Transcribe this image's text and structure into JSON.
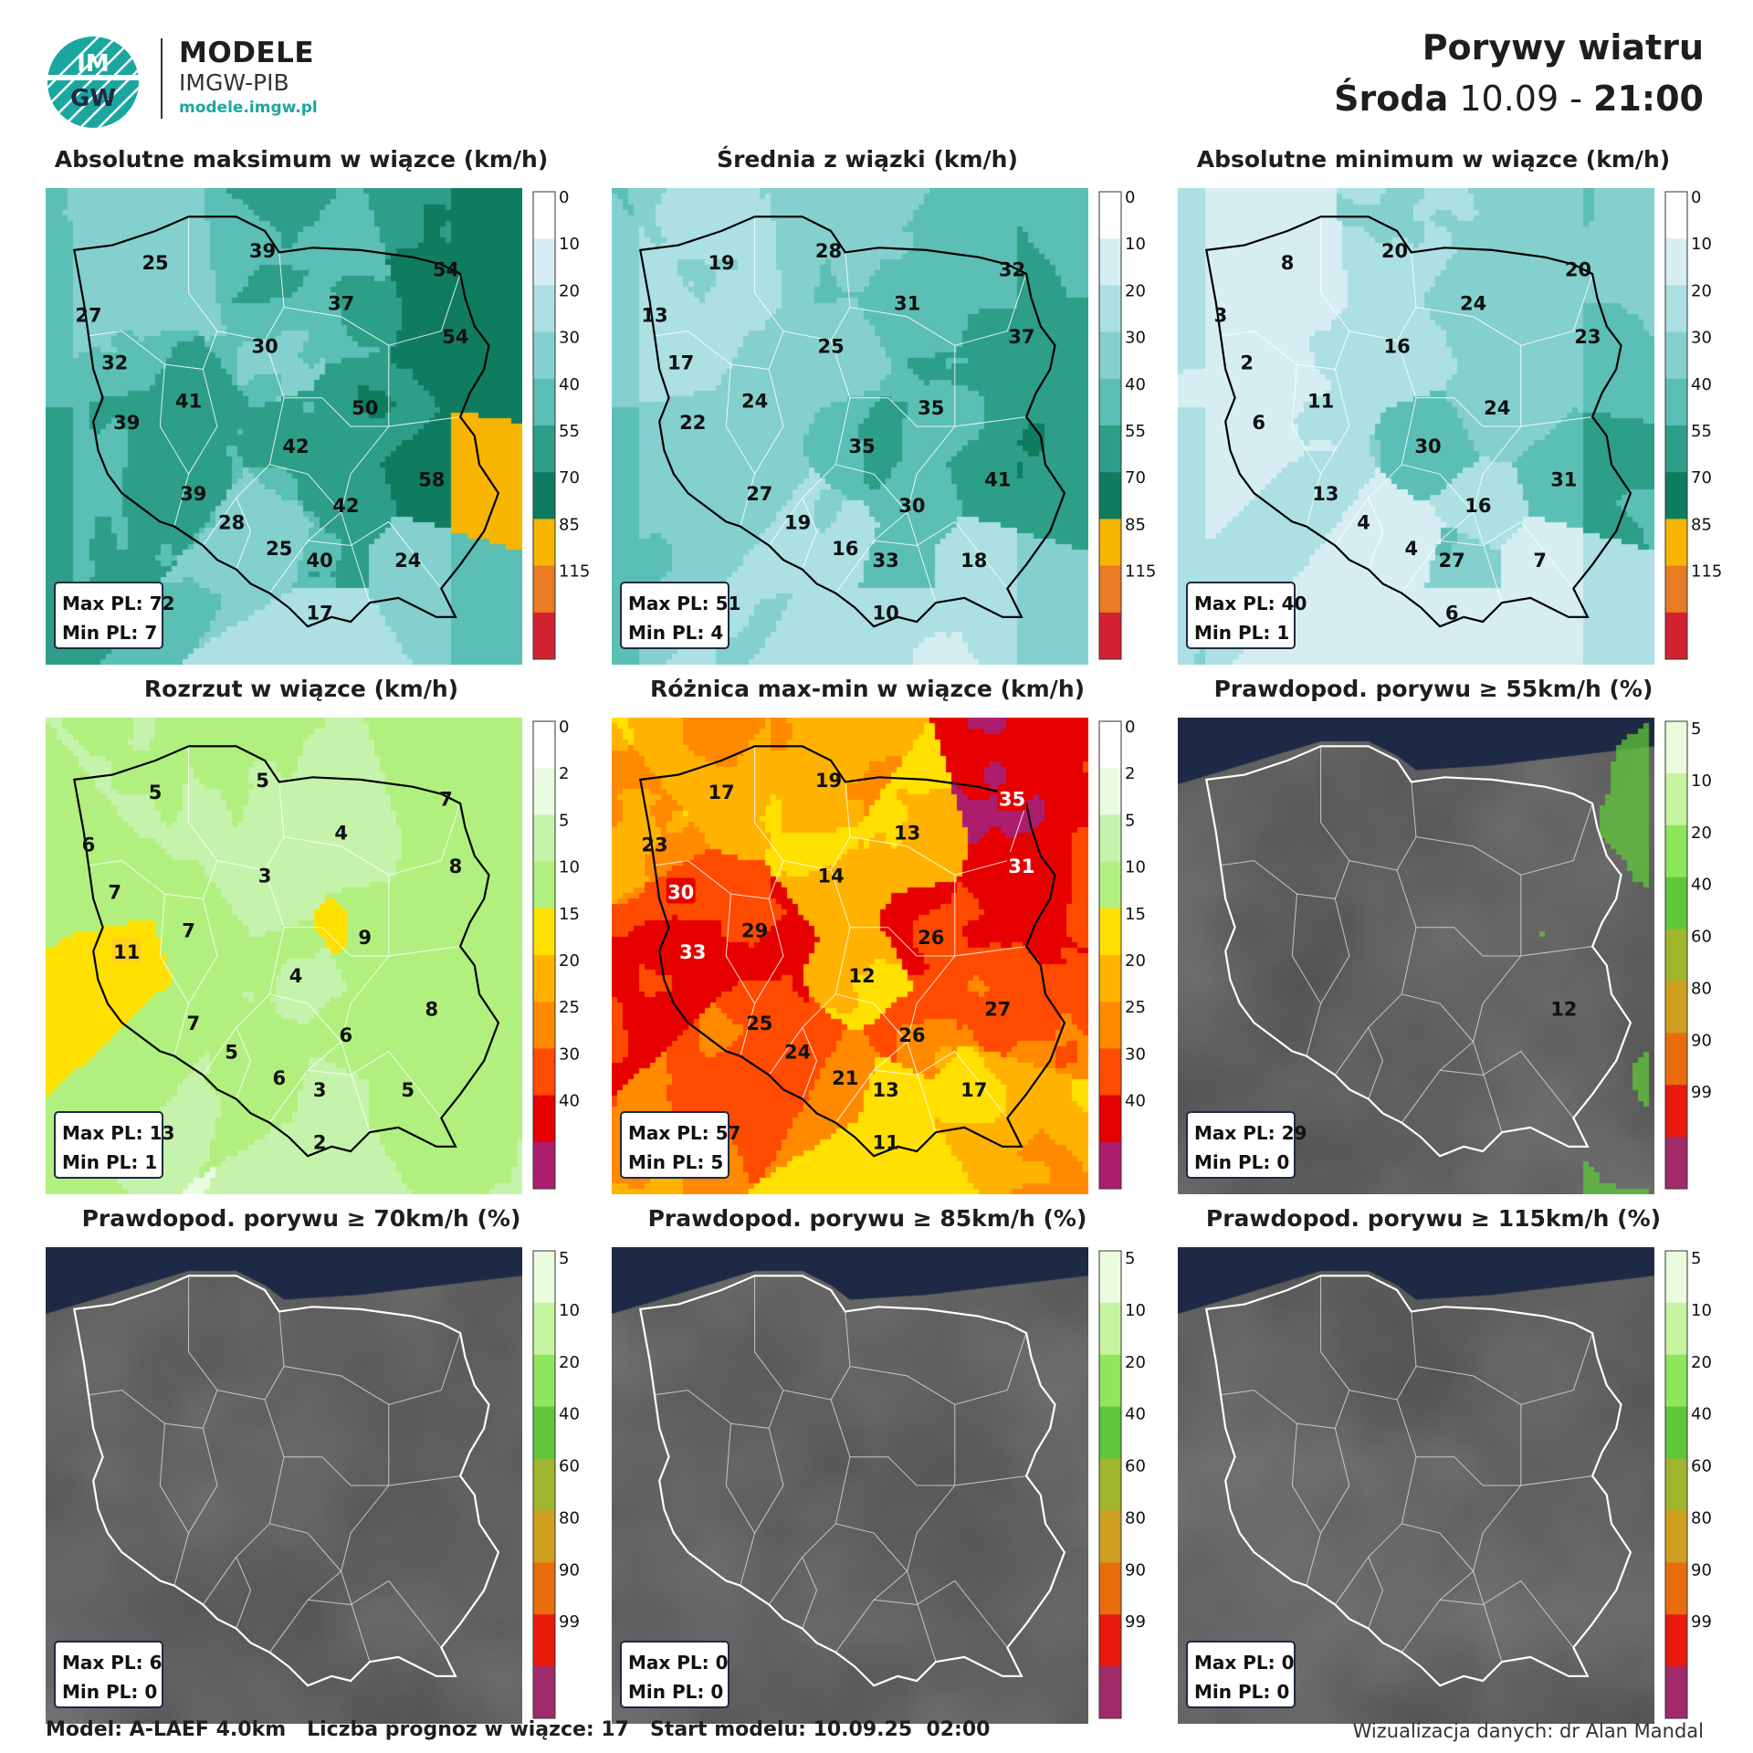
{
  "header": {
    "brand_main": "MODELE",
    "brand_sub": "IMGW-PIB",
    "brand_url": "modele.imgw.pl",
    "logo_text_top": "IM",
    "logo_text_bottom": "GW",
    "title": "Porywy wiatru",
    "day": "Środa",
    "date": "10.09",
    "sep": "-",
    "time": "21:00"
  },
  "scales": {
    "wind": {
      "ticks": [
        "0",
        "10",
        "20",
        "30",
        "40",
        "55",
        "70",
        "85",
        "115"
      ],
      "colors": [
        "#ffffff",
        "#d6eef2",
        "#ace0e3",
        "#84d0cf",
        "#5bbfb5",
        "#2d9e88",
        "#0f7c60",
        "#f7b500",
        "#e87b24",
        "#d22131"
      ]
    },
    "spread": {
      "ticks": [
        "0",
        "2",
        "5",
        "10",
        "15",
        "20",
        "25",
        "30",
        "40"
      ],
      "colors": [
        "#ffffff",
        "#eafbe2",
        "#c5f3ab",
        "#b1f07e",
        "#ffe000",
        "#ffb300",
        "#ff8a00",
        "#ff4b00",
        "#e60000",
        "#ad1d6e"
      ]
    },
    "prob": {
      "ticks": [
        "5",
        "10",
        "20",
        "40",
        "60",
        "80",
        "90",
        "99"
      ],
      "colors": [
        "#ebfcde",
        "#c6f3a0",
        "#8ee65c",
        "#5fc739",
        "#a1b52e",
        "#cf9f1f",
        "#e86c0c",
        "#e81a0e",
        "#a12b6a"
      ]
    }
  },
  "panels": [
    {
      "title": "Absolutne maksimum w wiązce (km/h)",
      "type": "wind",
      "max_label": "Max PL: 72",
      "min_label": "Min PL: 7",
      "values": [
        {
          "text": "25",
          "x": 0.23,
          "y": 0.155
        },
        {
          "text": "39",
          "x": 0.455,
          "y": 0.13
        },
        {
          "text": "54",
          "x": 0.84,
          "y": 0.17
        },
        {
          "text": "27",
          "x": 0.09,
          "y": 0.265
        },
        {
          "text": "37",
          "x": 0.62,
          "y": 0.24
        },
        {
          "text": "54",
          "x": 0.86,
          "y": 0.31
        },
        {
          "text": "32",
          "x": 0.145,
          "y": 0.365
        },
        {
          "text": "30",
          "x": 0.46,
          "y": 0.33
        },
        {
          "text": "41",
          "x": 0.3,
          "y": 0.445
        },
        {
          "text": "50",
          "x": 0.67,
          "y": 0.46
        },
        {
          "text": "39",
          "x": 0.17,
          "y": 0.49
        },
        {
          "text": "42",
          "x": 0.525,
          "y": 0.54
        },
        {
          "text": "58",
          "x": 0.81,
          "y": 0.61
        },
        {
          "text": "39",
          "x": 0.31,
          "y": 0.64
        },
        {
          "text": "42",
          "x": 0.63,
          "y": 0.665
        },
        {
          "text": "28",
          "x": 0.39,
          "y": 0.7
        },
        {
          "text": "25",
          "x": 0.49,
          "y": 0.755
        },
        {
          "text": "40",
          "x": 0.575,
          "y": 0.78
        },
        {
          "text": "24",
          "x": 0.76,
          "y": 0.78
        },
        {
          "text": "17",
          "x": 0.575,
          "y": 0.89
        }
      ]
    },
    {
      "title": "Średnia z wiązki (km/h)",
      "type": "wind",
      "max_label": "Max PL: 51",
      "min_label": "Min PL: 4",
      "values": [
        {
          "text": "19",
          "x": 0.23,
          "y": 0.155
        },
        {
          "text": "28",
          "x": 0.455,
          "y": 0.13
        },
        {
          "text": "32",
          "x": 0.84,
          "y": 0.17
        },
        {
          "text": "13",
          "x": 0.09,
          "y": 0.265
        },
        {
          "text": "31",
          "x": 0.62,
          "y": 0.24
        },
        {
          "text": "37",
          "x": 0.86,
          "y": 0.31
        },
        {
          "text": "17",
          "x": 0.145,
          "y": 0.365
        },
        {
          "text": "25",
          "x": 0.46,
          "y": 0.33
        },
        {
          "text": "24",
          "x": 0.3,
          "y": 0.445
        },
        {
          "text": "35",
          "x": 0.67,
          "y": 0.46
        },
        {
          "text": "22",
          "x": 0.17,
          "y": 0.49
        },
        {
          "text": "35",
          "x": 0.525,
          "y": 0.54
        },
        {
          "text": "41",
          "x": 0.81,
          "y": 0.61
        },
        {
          "text": "27",
          "x": 0.31,
          "y": 0.64
        },
        {
          "text": "30",
          "x": 0.63,
          "y": 0.665
        },
        {
          "text": "19",
          "x": 0.39,
          "y": 0.7
        },
        {
          "text": "16",
          "x": 0.49,
          "y": 0.755
        },
        {
          "text": "33",
          "x": 0.575,
          "y": 0.78
        },
        {
          "text": "18",
          "x": 0.76,
          "y": 0.78
        },
        {
          "text": "10",
          "x": 0.575,
          "y": 0.89
        }
      ]
    },
    {
      "title": "Absolutne minimum w wiązce (km/h)",
      "type": "wind",
      "max_label": "Max PL: 40",
      "min_label": "Min PL: 1",
      "values": [
        {
          "text": "8",
          "x": 0.23,
          "y": 0.155
        },
        {
          "text": "20",
          "x": 0.455,
          "y": 0.13
        },
        {
          "text": "20",
          "x": 0.84,
          "y": 0.17
        },
        {
          "text": "3",
          "x": 0.09,
          "y": 0.265
        },
        {
          "text": "24",
          "x": 0.62,
          "y": 0.24
        },
        {
          "text": "23",
          "x": 0.86,
          "y": 0.31
        },
        {
          "text": "2",
          "x": 0.145,
          "y": 0.365
        },
        {
          "text": "16",
          "x": 0.46,
          "y": 0.33
        },
        {
          "text": "11",
          "x": 0.3,
          "y": 0.445
        },
        {
          "text": "24",
          "x": 0.67,
          "y": 0.46
        },
        {
          "text": "6",
          "x": 0.17,
          "y": 0.49
        },
        {
          "text": "30",
          "x": 0.525,
          "y": 0.54
        },
        {
          "text": "31",
          "x": 0.81,
          "y": 0.61
        },
        {
          "text": "13",
          "x": 0.31,
          "y": 0.64
        },
        {
          "text": "16",
          "x": 0.63,
          "y": 0.665
        },
        {
          "text": "4",
          "x": 0.39,
          "y": 0.7
        },
        {
          "text": "4",
          "x": 0.49,
          "y": 0.755
        },
        {
          "text": "27",
          "x": 0.575,
          "y": 0.78
        },
        {
          "text": "7",
          "x": 0.76,
          "y": 0.78
        },
        {
          "text": "6",
          "x": 0.575,
          "y": 0.89
        }
      ]
    },
    {
      "title": "Rozrzut w wiązce (km/h)",
      "type": "spread",
      "max_label": "Max PL: 13",
      "min_label": "Min PL: 1",
      "values": [
        {
          "text": "5",
          "x": 0.23,
          "y": 0.155
        },
        {
          "text": "5",
          "x": 0.455,
          "y": 0.13
        },
        {
          "text": "7",
          "x": 0.84,
          "y": 0.17
        },
        {
          "text": "6",
          "x": 0.09,
          "y": 0.265
        },
        {
          "text": "4",
          "x": 0.62,
          "y": 0.24
        },
        {
          "text": "8",
          "x": 0.86,
          "y": 0.31
        },
        {
          "text": "7",
          "x": 0.145,
          "y": 0.365
        },
        {
          "text": "3",
          "x": 0.46,
          "y": 0.33
        },
        {
          "text": "7",
          "x": 0.3,
          "y": 0.445
        },
        {
          "text": "9",
          "x": 0.67,
          "y": 0.46
        },
        {
          "text": "11",
          "x": 0.17,
          "y": 0.49,
          "box": true
        },
        {
          "text": "4",
          "x": 0.525,
          "y": 0.54
        },
        {
          "text": "8",
          "x": 0.81,
          "y": 0.61
        },
        {
          "text": "7",
          "x": 0.31,
          "y": 0.64
        },
        {
          "text": "6",
          "x": 0.63,
          "y": 0.665
        },
        {
          "text": "5",
          "x": 0.39,
          "y": 0.7
        },
        {
          "text": "6",
          "x": 0.49,
          "y": 0.755
        },
        {
          "text": "3",
          "x": 0.575,
          "y": 0.78
        },
        {
          "text": "5",
          "x": 0.76,
          "y": 0.78
        },
        {
          "text": "2",
          "x": 0.575,
          "y": 0.89
        }
      ]
    },
    {
      "title": "Różnica max-min w wiązce (km/h)",
      "type": "spread",
      "max_label": "Max PL: 57",
      "min_label": "Min PL: 5",
      "values": [
        {
          "text": "17",
          "x": 0.23,
          "y": 0.155
        },
        {
          "text": "19",
          "x": 0.455,
          "y": 0.13
        },
        {
          "text": "35",
          "x": 0.84,
          "y": 0.17,
          "box": true
        },
        {
          "text": "23",
          "x": 0.09,
          "y": 0.265
        },
        {
          "text": "13",
          "x": 0.62,
          "y": 0.24
        },
        {
          "text": "31",
          "x": 0.86,
          "y": 0.31,
          "box": true
        },
        {
          "text": "30",
          "x": 0.145,
          "y": 0.365,
          "box": true
        },
        {
          "text": "14",
          "x": 0.46,
          "y": 0.33
        },
        {
          "text": "29",
          "x": 0.3,
          "y": 0.445
        },
        {
          "text": "26",
          "x": 0.67,
          "y": 0.46
        },
        {
          "text": "33",
          "x": 0.17,
          "y": 0.49,
          "box": true
        },
        {
          "text": "12",
          "x": 0.525,
          "y": 0.54
        },
        {
          "text": "27",
          "x": 0.81,
          "y": 0.61
        },
        {
          "text": "25",
          "x": 0.31,
          "y": 0.64
        },
        {
          "text": "26",
          "x": 0.63,
          "y": 0.665
        },
        {
          "text": "24",
          "x": 0.39,
          "y": 0.7
        },
        {
          "text": "21",
          "x": 0.49,
          "y": 0.755
        },
        {
          "text": "13",
          "x": 0.575,
          "y": 0.78
        },
        {
          "text": "17",
          "x": 0.76,
          "y": 0.78
        },
        {
          "text": "11",
          "x": 0.575,
          "y": 0.89
        }
      ]
    },
    {
      "title": "Prawdopod. porywu ≥ 55km/h (%)",
      "type": "prob",
      "max_label": "Max PL: 29",
      "min_label": "Min PL: 0",
      "values": [
        {
          "text": "12",
          "x": 0.81,
          "y": 0.61
        }
      ]
    },
    {
      "title": "Prawdopod. porywu ≥ 70km/h (%)",
      "type": "prob",
      "max_label": "Max PL: 6",
      "min_label": "Min PL: 0",
      "values": []
    },
    {
      "title": "Prawdopod. porywu ≥ 85km/h (%)",
      "type": "prob",
      "max_label": "Max PL: 0",
      "min_label": "Min PL: 0",
      "values": []
    },
    {
      "title": "Prawdopod. porywu ≥ 115km/h (%)",
      "type": "prob",
      "max_label": "Max PL: 0",
      "min_label": "Min PL: 0",
      "values": []
    }
  ],
  "footer": {
    "left": "Model: A-LAEF 4.0km   Liczba prognoz w wiązce: 17   Start modelu: 10.09.25  02:00",
    "right": "Wizualizacja danych: dr Alan Mandal"
  }
}
